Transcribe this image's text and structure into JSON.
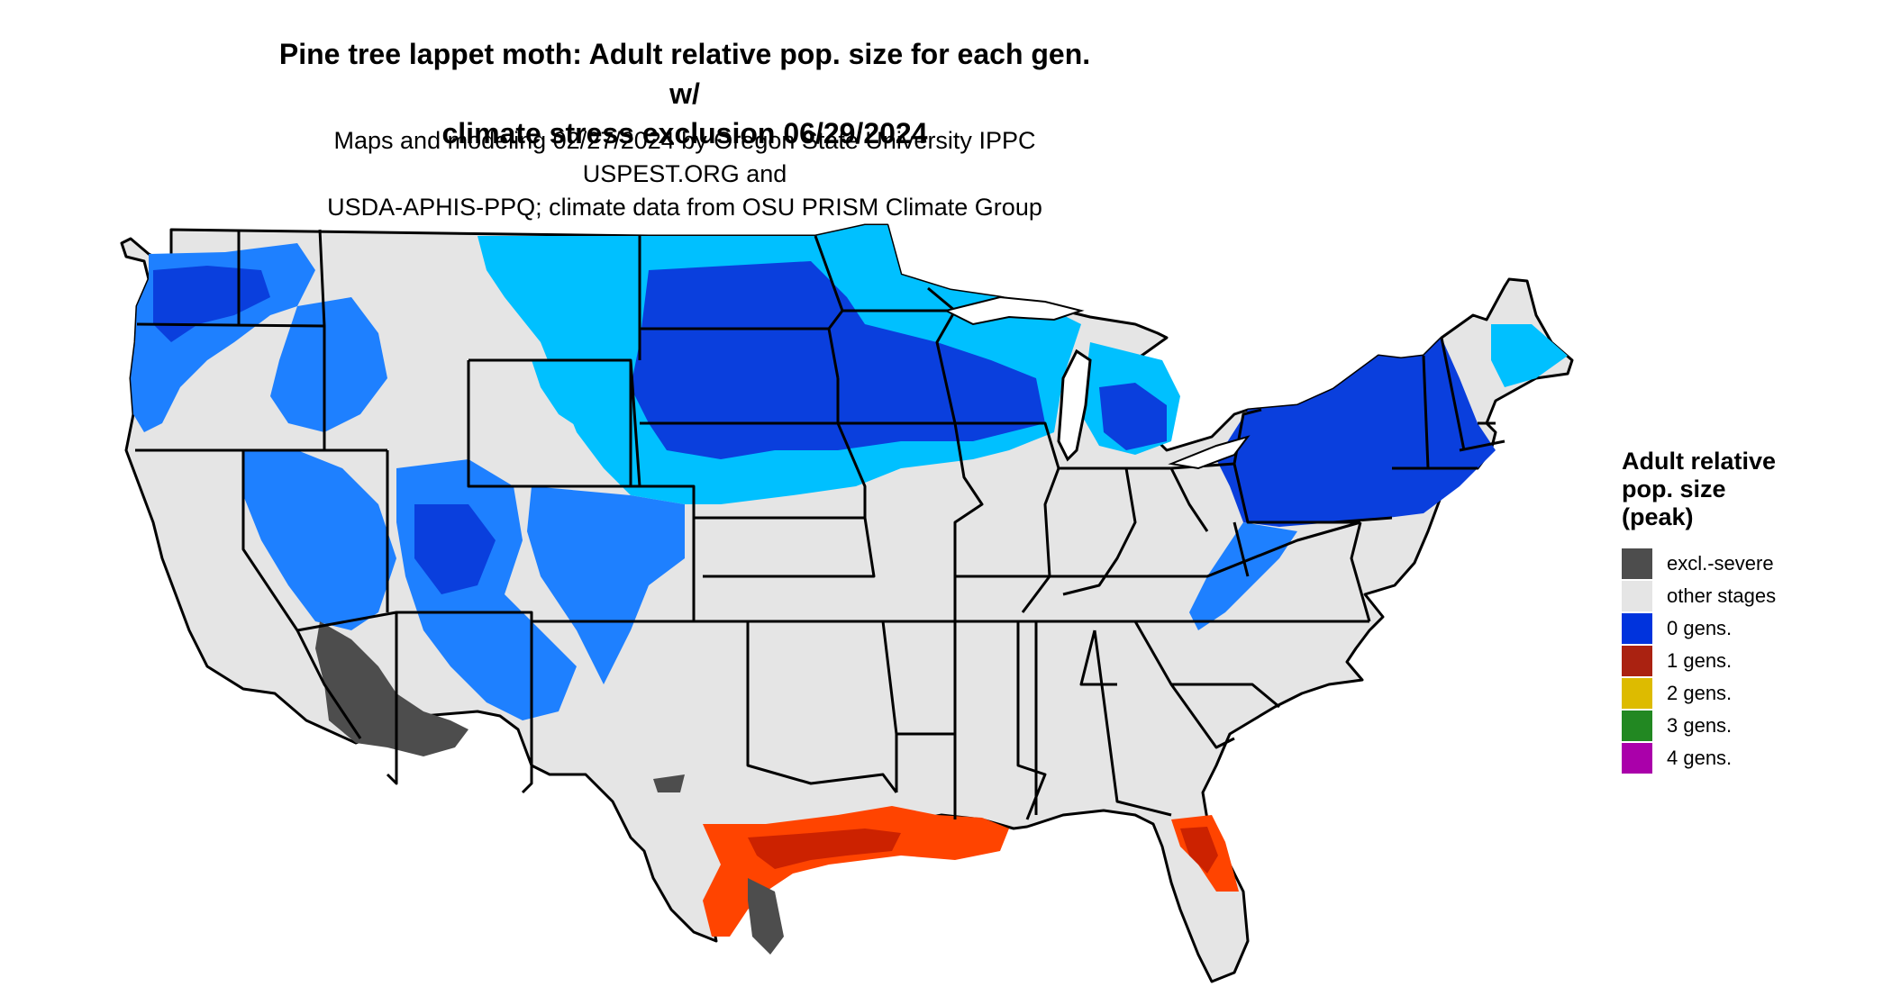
{
  "header": {
    "title_line1": "Pine tree lappet moth: Adult relative pop. size for each gen. w/",
    "title_line2": "climate stress exclusion 06/29/2024",
    "subtitle_line1": "Maps and modeling 02/27/2024 by Oregon State University IPPC USPEST.ORG and",
    "subtitle_line2": "USDA-APHIS-PPQ; climate data from OSU PRISM Climate Group"
  },
  "legend": {
    "title_line1": "Adult relative",
    "title_line2": "pop. size",
    "title_line3": "(peak)",
    "items": [
      {
        "label": "excl.-severe",
        "color": "#4d4d4d"
      },
      {
        "label": "other stages",
        "color": "#e5e5e5"
      },
      {
        "label": "0 gens.",
        "color": "#0033dd"
      },
      {
        "label": "1 gens.",
        "color": "#aa2211"
      },
      {
        "label": "2 gens.",
        "color": "#ddbb00"
      },
      {
        "label": "3 gens.",
        "color": "#228822"
      },
      {
        "label": "4 gens.",
        "color": "#aa00aa"
      }
    ]
  },
  "map_colors": {
    "land": "#e5e5e5",
    "light_blue": "#00c0ff",
    "mid_blue": "#1e80ff",
    "dark_blue": "#0a3fdd",
    "orange": "#ff4400",
    "red": "#cc2200",
    "excluded": "#4d4d4d",
    "border": "#000000"
  }
}
